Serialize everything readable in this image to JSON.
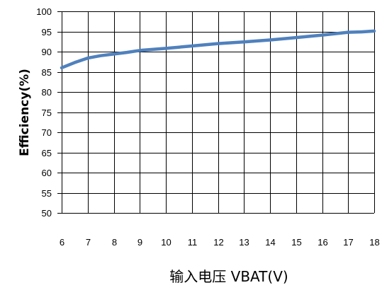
{
  "chart_data": {
    "type": "line",
    "title": "",
    "xlabel": "输入电压  VBAT(V)",
    "ylabel": "Efficiency(%)",
    "xlim": [
      6,
      18
    ],
    "ylim": [
      50,
      100
    ],
    "x_ticks": [
      "6",
      "7",
      "8",
      "9",
      "10",
      "11",
      "12",
      "13",
      "14",
      "15",
      "16",
      "17",
      "18"
    ],
    "y_ticks": [
      "50",
      "55",
      "60",
      "65",
      "70",
      "75",
      "80",
      "85",
      "90",
      "95",
      "100"
    ],
    "grid": true,
    "legend": "none",
    "series_color": "#4f81bd",
    "grid_color": "#000000",
    "series": [
      {
        "x": [
          6,
          6.5,
          7,
          7.5,
          8,
          8.5,
          9,
          10,
          11,
          12,
          13,
          14,
          15,
          16,
          17,
          17.5,
          18
        ],
        "y": [
          86,
          87.3,
          88.4,
          89,
          89.4,
          89.8,
          90.3,
          90.8,
          91.4,
          92,
          92.4,
          92.9,
          93.5,
          94.1,
          94.8,
          94.9,
          95.1
        ]
      }
    ]
  }
}
